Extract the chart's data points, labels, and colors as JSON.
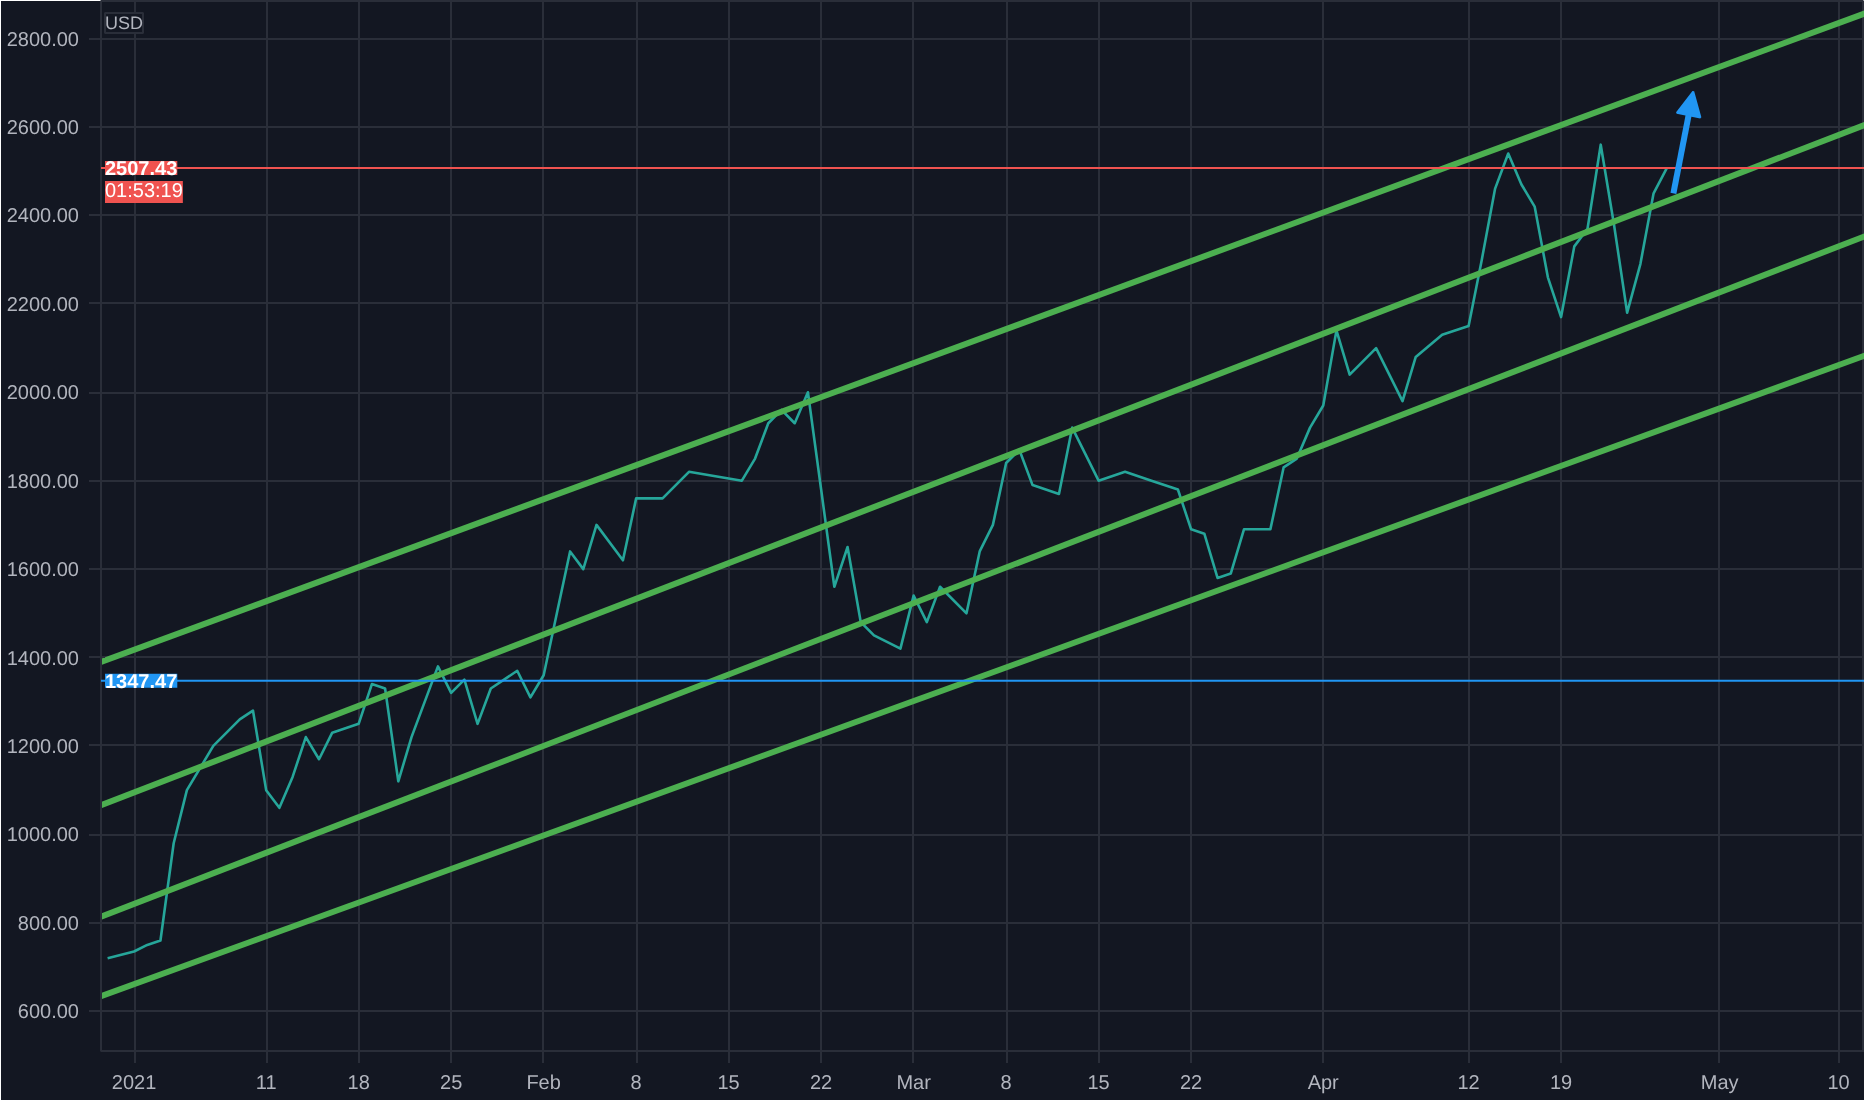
{
  "chart_data": {
    "type": "line",
    "ylabel": "USD",
    "annotations": [
      "01:53:19"
    ],
    "xlim": [
      "2020-12-29T12:00",
      "2021-05-12"
    ],
    "xticks": [
      {
        "value": "2021-01-01",
        "label": "2021"
      },
      {
        "value": "2021-01-11",
        "label": "11"
      },
      {
        "value": "2021-01-18",
        "label": "18"
      },
      {
        "value": "2021-01-25",
        "label": "25"
      },
      {
        "value": "2021-02-01",
        "label": "Feb"
      },
      {
        "value": "2021-02-08",
        "label": "8"
      },
      {
        "value": "2021-02-15",
        "label": "15"
      },
      {
        "value": "2021-02-22",
        "label": "22"
      },
      {
        "value": "2021-03-01",
        "label": "Mar"
      },
      {
        "value": "2021-03-08",
        "label": "8"
      },
      {
        "value": "2021-03-15",
        "label": "15"
      },
      {
        "value": "2021-03-22",
        "label": "22"
      },
      {
        "value": "2021-04-01",
        "label": "Apr"
      },
      {
        "value": "2021-04-12",
        "label": "12"
      },
      {
        "value": "2021-04-19",
        "label": "19"
      },
      {
        "value": "2021-05-01",
        "label": "May"
      },
      {
        "value": "2021-05-10",
        "label": "10"
      }
    ],
    "ylim": [
      510,
      2885
    ],
    "yticks": [
      {
        "value": 600,
        "label": "600.00"
      },
      {
        "value": 800,
        "label": "800.00"
      },
      {
        "value": 1000,
        "label": "1000.00"
      },
      {
        "value": 1200,
        "label": "1200.00"
      },
      {
        "value": 1400,
        "label": "1400.00"
      },
      {
        "value": 1600,
        "label": "1600.00"
      },
      {
        "value": 1800,
        "label": "1800.00"
      },
      {
        "value": 2000,
        "label": "2000.00"
      },
      {
        "value": 2200,
        "label": "2200.00"
      },
      {
        "value": 2400,
        "label": "2400.00"
      },
      {
        "value": 2600,
        "label": "2600.00"
      },
      {
        "value": 2800,
        "label": "2800.00"
      }
    ],
    "grid": true,
    "series": [
      {
        "color": "#26a69a",
        "x": [
          "2020-12-30",
          "2021-01-01",
          "2021-01-02",
          "2021-01-03",
          "2021-01-04",
          "2021-01-05",
          "2021-01-07",
          "2021-01-09",
          "2021-01-10",
          "2021-01-11",
          "2021-01-12",
          "2021-01-13",
          "2021-01-14",
          "2021-01-15",
          "2021-01-16",
          "2021-01-18",
          "2021-01-19",
          "2021-01-20",
          "2021-01-21",
          "2021-01-22",
          "2021-01-24",
          "2021-01-25",
          "2021-01-26",
          "2021-01-27",
          "2021-01-28",
          "2021-01-30",
          "2021-01-31",
          "2021-02-01",
          "2021-02-02",
          "2021-02-03",
          "2021-02-04",
          "2021-02-05",
          "2021-02-07",
          "2021-02-08",
          "2021-02-10",
          "2021-02-12",
          "2021-02-14",
          "2021-02-16",
          "2021-02-17",
          "2021-02-18",
          "2021-02-19",
          "2021-02-20",
          "2021-02-21",
          "2021-02-22",
          "2021-02-23",
          "2021-02-24",
          "2021-02-25",
          "2021-02-26",
          "2021-02-28",
          "2021-03-01",
          "2021-03-02",
          "2021-03-03",
          "2021-03-05",
          "2021-03-06",
          "2021-03-07",
          "2021-03-08",
          "2021-03-09",
          "2021-03-10",
          "2021-03-12",
          "2021-03-13",
          "2021-03-14",
          "2021-03-15",
          "2021-03-17",
          "2021-03-19",
          "2021-03-21",
          "2021-03-22",
          "2021-03-23",
          "2021-03-24",
          "2021-03-25",
          "2021-03-26",
          "2021-03-28",
          "2021-03-29",
          "2021-03-30",
          "2021-03-31",
          "2021-04-01",
          "2021-04-02",
          "2021-04-03",
          "2021-04-05",
          "2021-04-07",
          "2021-04-08",
          "2021-04-10",
          "2021-04-12",
          "2021-04-13",
          "2021-04-14",
          "2021-04-15",
          "2021-04-16",
          "2021-04-17",
          "2021-04-18",
          "2021-04-19",
          "2021-04-20",
          "2021-04-21",
          "2021-04-22",
          "2021-04-23",
          "2021-04-24",
          "2021-04-25",
          "2021-04-26",
          "2021-04-27"
        ],
        "values": [
          720,
          735,
          750,
          760,
          980,
          1100,
          1200,
          1260,
          1280,
          1100,
          1060,
          1130,
          1220,
          1170,
          1230,
          1250,
          1340,
          1330,
          1120,
          1220,
          1380,
          1320,
          1350,
          1250,
          1330,
          1370,
          1310,
          1360,
          1500,
          1640,
          1600,
          1700,
          1620,
          1760,
          1760,
          1820,
          1810,
          1800,
          1850,
          1930,
          1960,
          1930,
          2000,
          1780,
          1560,
          1650,
          1480,
          1450,
          1420,
          1540,
          1480,
          1560,
          1500,
          1640,
          1700,
          1840,
          1870,
          1790,
          1770,
          1920,
          1860,
          1800,
          1820,
          1800,
          1780,
          1690,
          1680,
          1580,
          1590,
          1690,
          1690,
          1830,
          1850,
          1920,
          1970,
          2140,
          2040,
          2100,
          1980,
          2080,
          2130,
          2150,
          2300,
          2460,
          2540,
          2470,
          2420,
          2260,
          2170,
          2330,
          2370,
          2560,
          2380,
          2180,
          2290,
          2450,
          2507
        ]
      },
      {
        "type": "line",
        "color": "#4caf50",
        "x": [
          "2020-12-29T12:00",
          "2021-05-12"
        ],
        "values": [
          1390,
          2857
        ]
      },
      {
        "type": "line",
        "color": "#4caf50",
        "x": [
          "2020-12-29T12:00",
          "2021-05-12"
        ],
        "values": [
          1066,
          2605
        ]
      },
      {
        "type": "line",
        "color": "#4caf50",
        "x": [
          "2020-12-29T12:00",
          "2021-05-12"
        ],
        "values": [
          814,
          2353
        ]
      },
      {
        "type": "line",
        "color": "#4caf50",
        "x": [
          "2020-12-29T12:00",
          "2021-05-12"
        ],
        "values": [
          634,
          2083
        ]
      }
    ],
    "ref_lines": [
      {
        "axis": "y",
        "value": 2507.43,
        "label": "2507.43",
        "color": "#f05350"
      },
      {
        "axis": "y",
        "value": 1347.47,
        "label": "1347.47",
        "color": "#2196f3"
      }
    ]
  }
}
